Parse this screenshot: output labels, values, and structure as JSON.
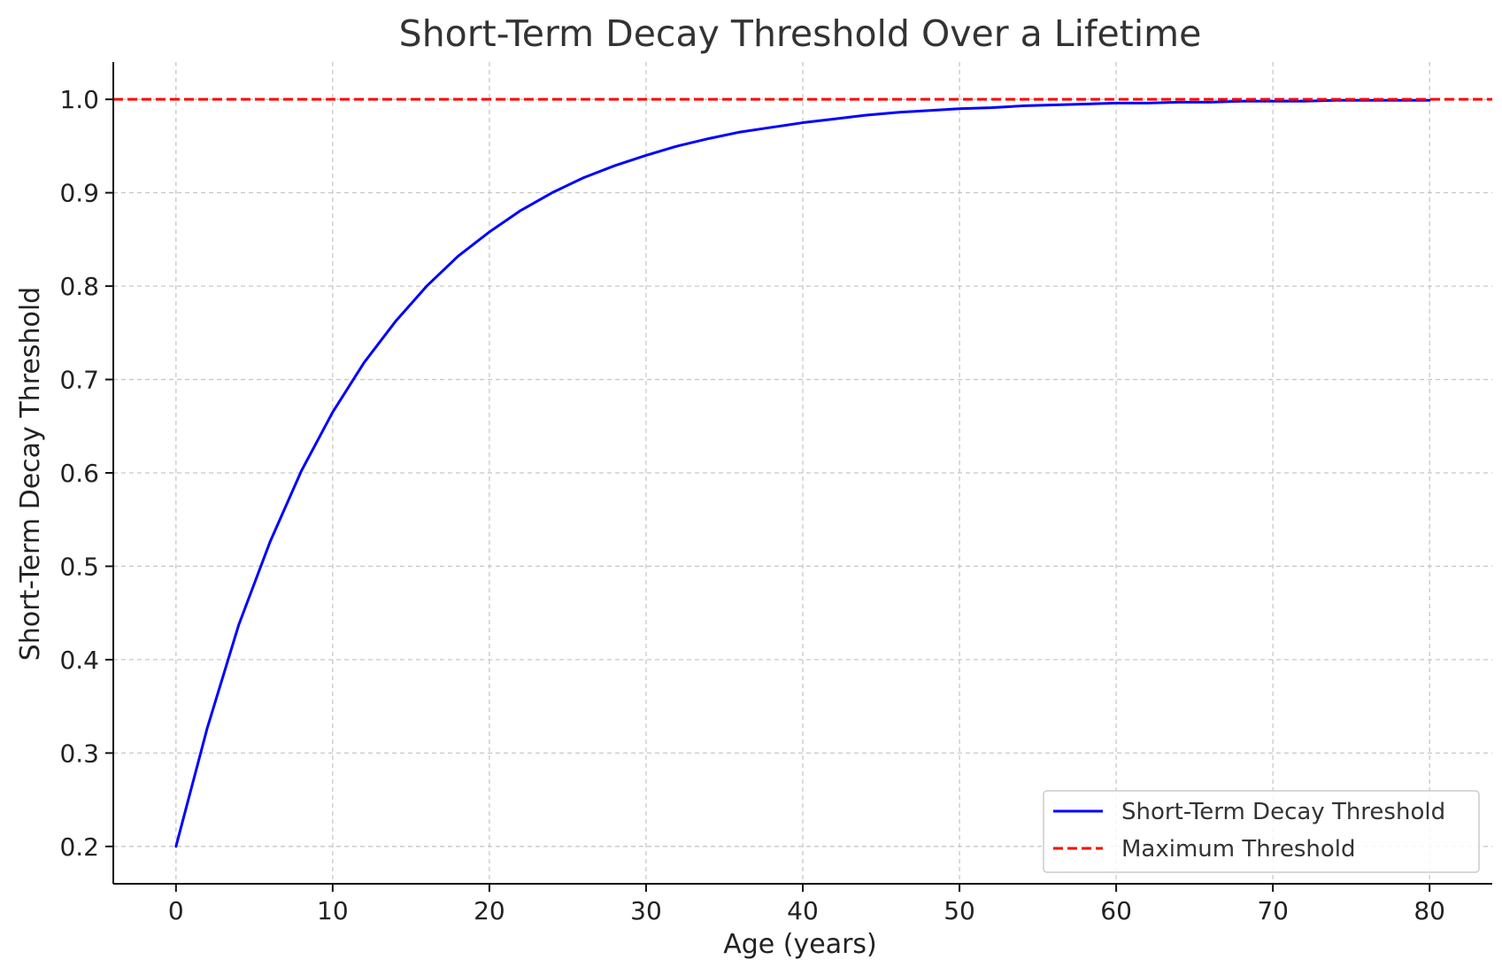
{
  "chart_data": {
    "type": "line",
    "title": "Short-Term Decay Threshold Over a Lifetime",
    "xlabel": "Age (years)",
    "ylabel": "Short-Term Decay Threshold",
    "xlim": [
      -4,
      84
    ],
    "ylim": [
      0.16,
      1.04
    ],
    "x_ticks": [
      0,
      10,
      20,
      30,
      40,
      50,
      60,
      70,
      80
    ],
    "x_tick_labels": [
      "0",
      "10",
      "20",
      "30",
      "40",
      "50",
      "60",
      "70",
      "80"
    ],
    "y_ticks": [
      0.2,
      0.3,
      0.4,
      0.5,
      0.6,
      0.7,
      0.8,
      0.9,
      1.0
    ],
    "y_tick_labels": [
      "0.2",
      "0.3",
      "0.4",
      "0.5",
      "0.6",
      "0.7",
      "0.8",
      "0.9",
      "1.0"
    ],
    "grid": true,
    "legend_position": "lower-right",
    "series": [
      {
        "name": "Short-Term Decay Threshold",
        "color": "#0000ff",
        "style": "solid",
        "x": [
          0,
          2,
          4,
          6,
          8,
          10,
          12,
          14,
          16,
          18,
          20,
          22,
          24,
          26,
          28,
          30,
          32,
          34,
          36,
          38,
          40,
          42,
          44,
          46,
          48,
          50,
          52,
          54,
          56,
          58,
          60,
          62,
          64,
          66,
          68,
          70,
          72,
          74,
          76,
          78,
          80
        ],
        "y": [
          0.2,
          0.327,
          0.437,
          0.526,
          0.602,
          0.665,
          0.718,
          0.762,
          0.8,
          0.832,
          0.858,
          0.881,
          0.9,
          0.916,
          0.929,
          0.94,
          0.95,
          0.958,
          0.965,
          0.97,
          0.975,
          0.979,
          0.983,
          0.986,
          0.988,
          0.99,
          0.991,
          0.993,
          0.994,
          0.995,
          0.996,
          0.996,
          0.997,
          0.997,
          0.998,
          0.998,
          0.998,
          0.999,
          0.999,
          0.999,
          0.999
        ]
      },
      {
        "name": "Maximum Threshold",
        "color": "#ff0000",
        "style": "dashed",
        "y_constant": 1.0
      }
    ]
  }
}
